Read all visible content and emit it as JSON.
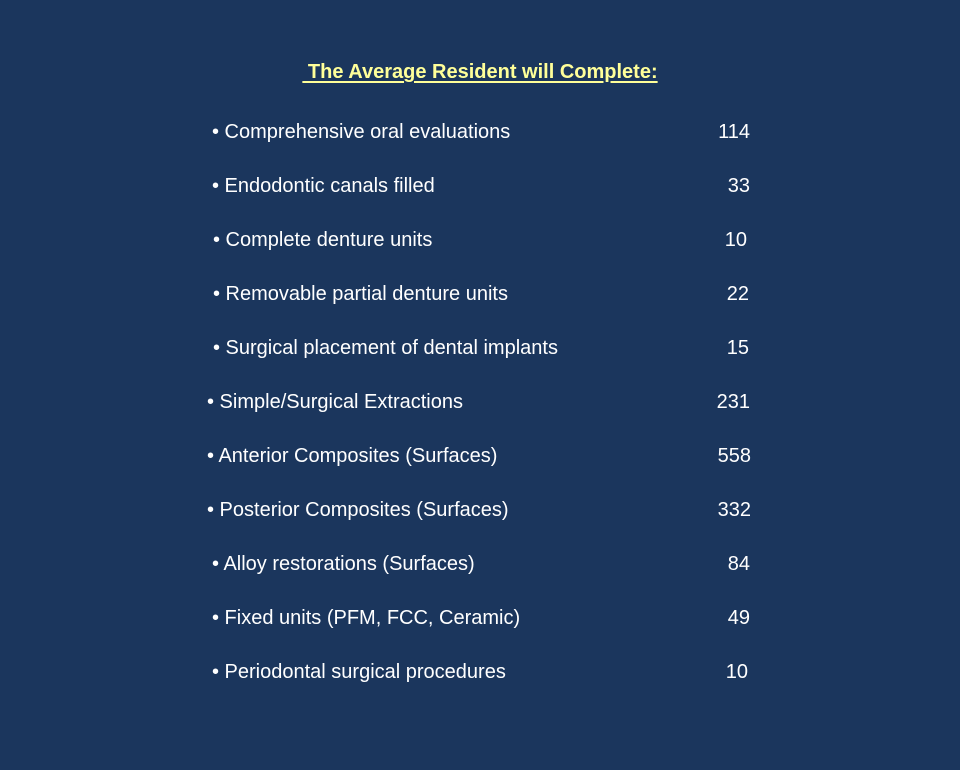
{
  "title": " The Average Resident will Complete:",
  "items": [
    {
      "label": "• Comprehensive oral evaluations",
      "value": "114"
    },
    {
      "label": "• Endodontic canals filled",
      "value": "33"
    },
    {
      "label": "• Complete denture units",
      "value": "10"
    },
    {
      "label": "• Removable partial denture units",
      "value": "22"
    },
    {
      "label": "• Surgical placement of dental implants",
      "value": "15"
    },
    {
      "label": "• Simple/Surgical Extractions",
      "value": "231"
    },
    {
      "label": "• Anterior Composites (Surfaces)",
      "value": "558"
    },
    {
      "label": "• Posterior Composites (Surfaces)",
      "value": "332"
    },
    {
      "label": "• Alloy restorations (Surfaces)",
      "value": "84"
    },
    {
      "label": "• Fixed units (PFM, FCC, Ceramic)",
      "value": "49"
    },
    {
      "label": "• Periodontal surgical procedures",
      "value": "10"
    }
  ],
  "colors": {
    "background": "#1b365d",
    "title": "#ffff99",
    "text": "#ffffff"
  }
}
